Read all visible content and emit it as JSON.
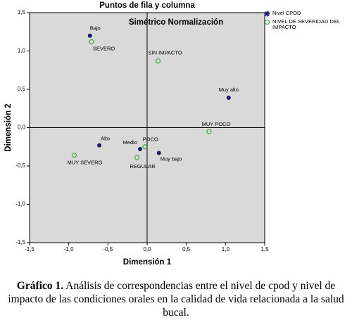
{
  "chart_data": {
    "type": "scatter",
    "title": "Puntos de fila y columna",
    "subtitle": "Simétrico Normalización",
    "x_label": "Dimensión 1",
    "y_label": "Dimensión 2",
    "xlim": [
      -1.5,
      1.5
    ],
    "ylim": [
      -1.5,
      1.5
    ],
    "xticks": [
      {
        "value": -1.5,
        "label": "-1,5"
      },
      {
        "value": -1.0,
        "label": "-1,0"
      },
      {
        "value": -0.5,
        "label": "-0,5"
      },
      {
        "value": 0,
        "label": "0,0"
      },
      {
        "value": 0.5,
        "label": "0,5"
      },
      {
        "value": 1.0,
        "label": "1,0"
      },
      {
        "value": 1.5,
        "label": "1,5"
      }
    ],
    "yticks": [
      {
        "value": -1.5,
        "label": "-1,5"
      },
      {
        "value": -1.0,
        "label": "-1,0"
      },
      {
        "value": -0.5,
        "label": "-0,5"
      },
      {
        "value": 0,
        "label": "0,0"
      },
      {
        "value": 0.5,
        "label": "0,5"
      },
      {
        "value": 1.0,
        "label": "1,0"
      },
      {
        "value": 1.5,
        "label": "1,5"
      }
    ],
    "series": [
      {
        "name": "Nivel CPOD",
        "color": "#1a1a6e",
        "marker": "filled",
        "labels": [
          "Bajo",
          "Muy alto",
          "Alto",
          "Medio",
          "Muy bajo"
        ],
        "x": [
          -0.73,
          1.04,
          -0.61,
          -0.09,
          0.15
        ],
        "values": [
          1.2,
          0.39,
          -0.23,
          -0.28,
          -0.33
        ]
      },
      {
        "name": "NIVEL DE SEVERIDAD DEL IMPACTO",
        "color": "#3cab3c",
        "marker": "hollow",
        "labels": [
          "SEVERO",
          "SIN IMPACTO",
          "MUY POCO",
          "MUY SEVERO",
          "POCO",
          "REGULAR"
        ],
        "x": [
          -0.71,
          0.14,
          0.79,
          -0.93,
          -0.03,
          -0.13
        ],
        "values": [
          1.12,
          0.87,
          -0.05,
          -0.36,
          -0.25,
          -0.39
        ]
      }
    ]
  },
  "caption": {
    "label": "Gráfico 1.",
    "text": "Análisis de correspondencias entre el nivel de cpod y nivel de impacto de las condiciones orales en la calidad de vida relacionada a la salud bucal."
  }
}
